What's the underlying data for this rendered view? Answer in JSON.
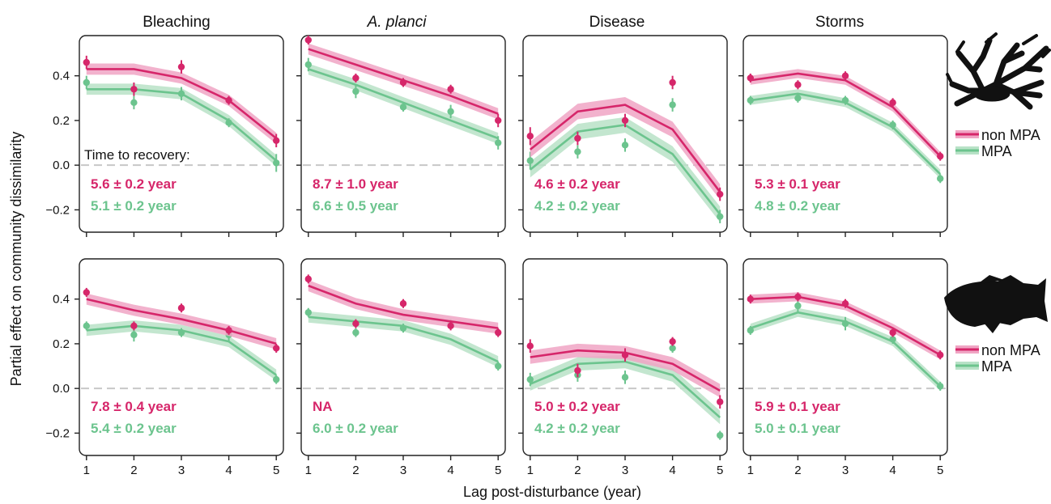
{
  "figure": {
    "ylabel": "Partial effect on community dissimilarity",
    "xlabel": "Lag post-disturbance (year)",
    "recovery_heading": "Time to recovery:",
    "columns": [
      "Bleaching",
      "A. planci",
      "Disease",
      "Storms"
    ],
    "italic_columns": [
      "A. planci"
    ],
    "legend": [
      {
        "label": "non MPA",
        "color": "#d6266a"
      },
      {
        "label": "MPA",
        "color": "#6cc48e"
      }
    ],
    "silhouettes": [
      "coral-silhouette-icon",
      "fish-silhouette-icon"
    ]
  },
  "colors": {
    "non_mpa": "#d6266a",
    "mpa": "#6cc48e",
    "non_mpa_band": "#f0a5c4",
    "mpa_band": "#b8e2c7",
    "zero_line": "#c8c8c8"
  },
  "chart_data": [
    {
      "type": "line",
      "row": 1,
      "col": 1,
      "title": "Bleaching",
      "x": [
        1,
        2,
        3,
        4,
        5
      ],
      "ylim": [
        -0.3,
        0.58
      ],
      "xlim": [
        0.85,
        5.15
      ],
      "ticks_y": [
        -0.2,
        0.0,
        0.2,
        0.4
      ],
      "series": [
        {
          "name": "non MPA",
          "fit": [
            0.43,
            0.43,
            0.39,
            0.29,
            0.12
          ],
          "points": [
            0.46,
            0.34,
            0.44,
            0.29,
            0.11
          ],
          "err": [
            0.03,
            0.03,
            0.03,
            0.02,
            0.03
          ],
          "band": 0.025
        },
        {
          "name": "MPA",
          "fit": [
            0.34,
            0.34,
            0.32,
            0.2,
            0.02
          ],
          "points": [
            0.37,
            0.28,
            0.32,
            0.19,
            0.01
          ],
          "err": [
            0.03,
            0.03,
            0.03,
            0.02,
            0.04
          ],
          "band": 0.025
        }
      ],
      "recovery": {
        "non_mpa": "5.6 ± 0.2 year",
        "mpa": "5.1 ± 0.2 year"
      }
    },
    {
      "type": "line",
      "row": 1,
      "col": 2,
      "title": "A. planci",
      "x": [
        1,
        2,
        3,
        4,
        5
      ],
      "ylim": [
        -0.3,
        0.58
      ],
      "xlim": [
        0.85,
        5.15
      ],
      "ticks_y": [
        -0.2,
        0.0,
        0.2,
        0.4
      ],
      "series": [
        {
          "name": "non MPA",
          "fit": [
            0.52,
            0.45,
            0.38,
            0.31,
            0.23
          ],
          "points": [
            0.56,
            0.39,
            0.37,
            0.34,
            0.2
          ],
          "err": [
            0.02,
            0.02,
            0.02,
            0.02,
            0.03
          ],
          "band": 0.025
        },
        {
          "name": "MPA",
          "fit": [
            0.43,
            0.36,
            0.28,
            0.2,
            0.12
          ],
          "points": [
            0.45,
            0.33,
            0.26,
            0.24,
            0.1
          ],
          "err": [
            0.03,
            0.03,
            0.02,
            0.03,
            0.03
          ],
          "band": 0.025
        }
      ],
      "recovery": {
        "non_mpa": "8.7 ± 1.0 year",
        "mpa": "6.6 ± 0.5 year"
      }
    },
    {
      "type": "line",
      "row": 1,
      "col": 3,
      "title": "Disease",
      "x": [
        1,
        2,
        3,
        4,
        5
      ],
      "ylim": [
        -0.3,
        0.58
      ],
      "xlim": [
        0.85,
        5.15
      ],
      "ticks_y": [
        -0.2,
        0.0,
        0.2,
        0.4
      ],
      "series": [
        {
          "name": "non MPA",
          "fit": [
            0.07,
            0.24,
            0.27,
            0.16,
            -0.12
          ],
          "points": [
            0.13,
            0.12,
            0.2,
            0.37,
            -0.13
          ],
          "err": [
            0.04,
            0.03,
            0.03,
            0.03,
            0.03
          ],
          "band": 0.035
        },
        {
          "name": "MPA",
          "fit": [
            -0.02,
            0.15,
            0.18,
            0.05,
            -0.22
          ],
          "points": [
            0.02,
            0.06,
            0.09,
            0.27,
            -0.23
          ],
          "err": [
            0.04,
            0.03,
            0.03,
            0.03,
            0.03
          ],
          "band": 0.035
        }
      ],
      "recovery": {
        "non_mpa": "4.6 ± 0.2 year",
        "mpa": "4.2 ± 0.2 year"
      }
    },
    {
      "type": "line",
      "row": 1,
      "col": 4,
      "title": "Storms",
      "x": [
        1,
        2,
        3,
        4,
        5
      ],
      "ylim": [
        -0.3,
        0.58
      ],
      "xlim": [
        0.85,
        5.15
      ],
      "ticks_y": [
        -0.2,
        0.0,
        0.2,
        0.4
      ],
      "series": [
        {
          "name": "non MPA",
          "fit": [
            0.38,
            0.41,
            0.38,
            0.26,
            0.04
          ],
          "points": [
            0.39,
            0.36,
            0.4,
            0.28,
            0.04
          ],
          "err": [
            0.02,
            0.02,
            0.02,
            0.02,
            0.02
          ],
          "band": 0.02
        },
        {
          "name": "MPA",
          "fit": [
            0.29,
            0.32,
            0.28,
            0.17,
            -0.04
          ],
          "points": [
            0.29,
            0.3,
            0.29,
            0.18,
            -0.06
          ],
          "err": [
            0.02,
            0.02,
            0.02,
            0.02,
            0.02
          ],
          "band": 0.02
        }
      ],
      "recovery": {
        "non_mpa": "5.3 ± 0.1 year",
        "mpa": "4.8 ± 0.2 year"
      }
    },
    {
      "type": "line",
      "row": 2,
      "col": 1,
      "title": "",
      "x": [
        1,
        2,
        3,
        4,
        5
      ],
      "ylim": [
        -0.3,
        0.58
      ],
      "xlim": [
        0.85,
        5.15
      ],
      "ticks_y": [
        -0.2,
        0.0,
        0.2,
        0.4
      ],
      "series": [
        {
          "name": "non MPA",
          "fit": [
            0.4,
            0.35,
            0.31,
            0.26,
            0.2
          ],
          "points": [
            0.43,
            0.28,
            0.36,
            0.26,
            0.18
          ],
          "err": [
            0.02,
            0.02,
            0.02,
            0.02,
            0.02
          ],
          "band": 0.025
        },
        {
          "name": "MPA",
          "fit": [
            0.26,
            0.28,
            0.26,
            0.21,
            0.06
          ],
          "points": [
            0.28,
            0.24,
            0.25,
            0.24,
            0.04
          ],
          "err": [
            0.02,
            0.03,
            0.02,
            0.03,
            0.02
          ],
          "band": 0.025
        }
      ],
      "recovery": {
        "non_mpa": "7.8 ± 0.4 year",
        "mpa": "5.4 ± 0.2 year"
      }
    },
    {
      "type": "line",
      "row": 2,
      "col": 2,
      "title": "",
      "x": [
        1,
        2,
        3,
        4,
        5
      ],
      "ylim": [
        -0.3,
        0.58
      ],
      "xlim": [
        0.85,
        5.15
      ],
      "ticks_y": [
        -0.2,
        0.0,
        0.2,
        0.4
      ],
      "series": [
        {
          "name": "non MPA",
          "fit": [
            0.46,
            0.38,
            0.33,
            0.3,
            0.27
          ],
          "points": [
            0.49,
            0.29,
            0.38,
            0.28,
            0.25
          ],
          "err": [
            0.02,
            0.02,
            0.02,
            0.02,
            0.02
          ],
          "band": 0.025
        },
        {
          "name": "MPA",
          "fit": [
            0.32,
            0.3,
            0.28,
            0.22,
            0.12
          ],
          "points": [
            0.34,
            0.25,
            0.27,
            0.29,
            0.1
          ],
          "err": [
            0.02,
            0.02,
            0.02,
            0.02,
            0.02
          ],
          "band": 0.025
        }
      ],
      "recovery": {
        "non_mpa": "NA",
        "mpa": "6.0 ± 0.2 year"
      }
    },
    {
      "type": "line",
      "row": 2,
      "col": 3,
      "title": "",
      "x": [
        1,
        2,
        3,
        4,
        5
      ],
      "ylim": [
        -0.3,
        0.58
      ],
      "xlim": [
        0.85,
        5.15
      ],
      "ticks_y": [
        -0.2,
        0.0,
        0.2,
        0.4
      ],
      "series": [
        {
          "name": "non MPA",
          "fit": [
            0.14,
            0.17,
            0.16,
            0.11,
            -0.01
          ],
          "points": [
            0.19,
            0.08,
            0.15,
            0.21,
            -0.06
          ],
          "err": [
            0.03,
            0.03,
            0.03,
            0.02,
            0.03
          ],
          "band": 0.03
        },
        {
          "name": "MPA",
          "fit": [
            0.02,
            0.11,
            0.12,
            0.06,
            -0.13
          ],
          "points": [
            0.04,
            0.06,
            0.05,
            0.18,
            -0.21
          ],
          "err": [
            0.03,
            0.03,
            0.03,
            0.02,
            0.02
          ],
          "band": 0.03
        }
      ],
      "recovery": {
        "non_mpa": "5.0 ± 0.2 year",
        "mpa": "4.2 ± 0.2 year"
      }
    },
    {
      "type": "line",
      "row": 2,
      "col": 4,
      "title": "",
      "x": [
        1,
        2,
        3,
        4,
        5
      ],
      "ylim": [
        -0.3,
        0.58
      ],
      "xlim": [
        0.85,
        5.15
      ],
      "ticks_y": [
        -0.2,
        0.0,
        0.2,
        0.4
      ],
      "series": [
        {
          "name": "non MPA",
          "fit": [
            0.4,
            0.41,
            0.37,
            0.27,
            0.15
          ],
          "points": [
            0.4,
            0.41,
            0.38,
            0.25,
            0.15
          ],
          "err": [
            0.02,
            0.02,
            0.02,
            0.02,
            0.02
          ],
          "band": 0.02
        },
        {
          "name": "MPA",
          "fit": [
            0.27,
            0.34,
            0.3,
            0.21,
            0.01
          ],
          "points": [
            0.26,
            0.37,
            0.29,
            0.22,
            0.01
          ],
          "err": [
            0.02,
            0.03,
            0.03,
            0.02,
            0.02
          ],
          "band": 0.02
        }
      ],
      "recovery": {
        "non_mpa": "5.9 ± 0.1 year",
        "mpa": "5.0 ± 0.1 year"
      }
    }
  ]
}
